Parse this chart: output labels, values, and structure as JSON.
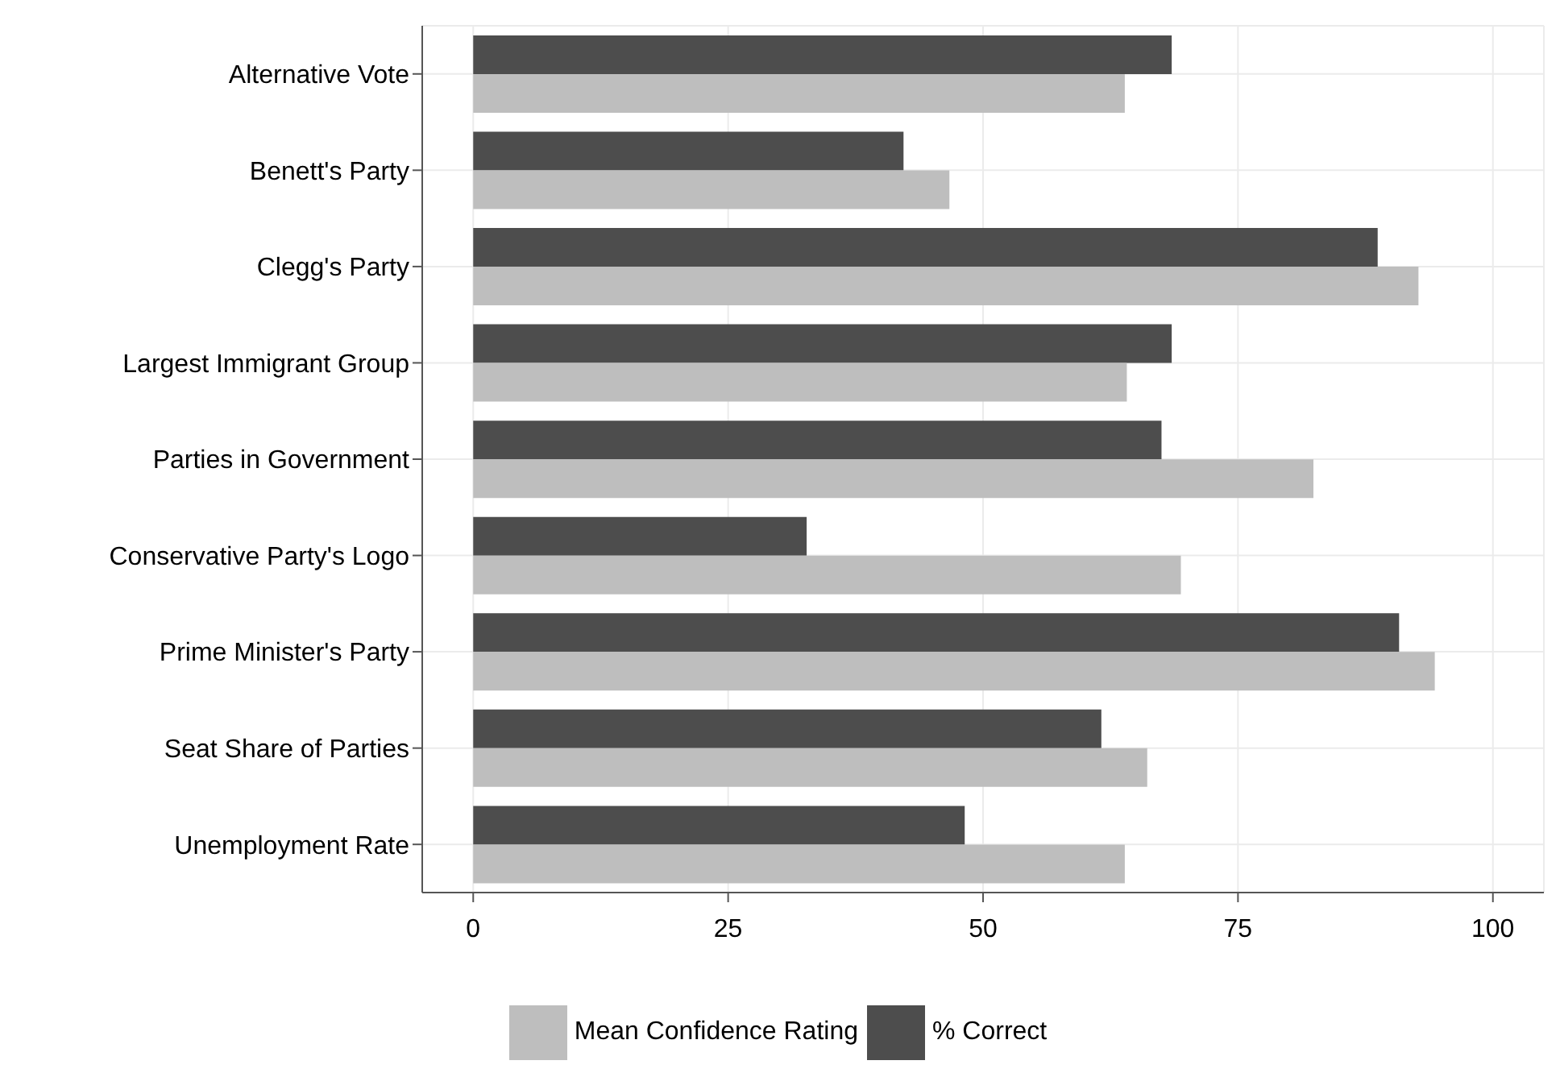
{
  "chart_data": {
    "type": "bar",
    "orientation": "horizontal",
    "categories": [
      "Alternative Vote",
      "Benett's Party",
      "Clegg's Party",
      "Largest Immigrant Group",
      "Parties in Government",
      "Conservative Party's Logo",
      "Prime Minister's Party",
      "Seat Share of Parties",
      "Unemployment Rate"
    ],
    "series": [
      {
        "name": "Mean Confidence Rating",
        "color": "#bebebe",
        "values": [
          63.9,
          46.7,
          92.7,
          64.1,
          82.4,
          69.4,
          94.3,
          66.1,
          63.9
        ]
      },
      {
        "name": "% Correct",
        "color": "#4d4d4d",
        "values": [
          68.5,
          42.2,
          88.7,
          68.5,
          67.5,
          32.7,
          90.8,
          61.6,
          48.2
        ]
      }
    ],
    "xlim": [
      -5,
      105
    ],
    "xticks": [
      0,
      25,
      50,
      75,
      100
    ],
    "grid": true,
    "legend": "bottom"
  }
}
